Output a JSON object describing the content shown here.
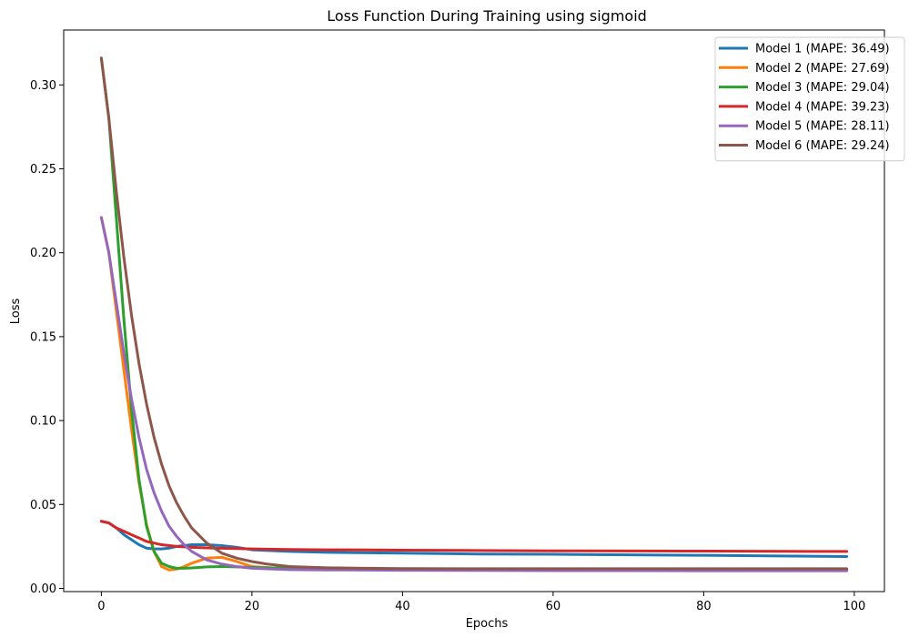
{
  "chart_data": {
    "type": "line",
    "title": "Loss Function During Training using sigmoid",
    "xlabel": "Epochs",
    "ylabel": "Loss",
    "xlim": [
      -5,
      104
    ],
    "ylim": [
      -0.0019,
      0.3327
    ],
    "xticks": [
      0,
      20,
      40,
      60,
      80,
      100
    ],
    "yticks": [
      0.0,
      0.05,
      0.1,
      0.15,
      0.2,
      0.25,
      0.3
    ],
    "xtick_labels": [
      "0",
      "20",
      "40",
      "60",
      "80",
      "100"
    ],
    "ytick_labels": [
      "0.00",
      "0.05",
      "0.10",
      "0.15",
      "0.20",
      "0.25",
      "0.30"
    ],
    "grid": false,
    "legend_position": "top-right",
    "series": [
      {
        "name": "Model 1 (MAPE: 36.49)",
        "color": "#1f77b4",
        "x": [
          0,
          1,
          2,
          3,
          4,
          5,
          6,
          7,
          8,
          9,
          10,
          12,
          14,
          16,
          18,
          20,
          25,
          30,
          40,
          50,
          60,
          70,
          80,
          90,
          99
        ],
        "y": [
          0.04,
          0.039,
          0.036,
          0.032,
          0.029,
          0.026,
          0.024,
          0.0235,
          0.0235,
          0.024,
          0.025,
          0.026,
          0.026,
          0.0255,
          0.0245,
          0.023,
          0.022,
          0.0215,
          0.021,
          0.0205,
          0.0203,
          0.02,
          0.0197,
          0.0193,
          0.019
        ]
      },
      {
        "name": "Model 2 (MAPE: 27.69)",
        "color": "#ff7f0e",
        "x": [
          0,
          1,
          2,
          3,
          4,
          5,
          6,
          7,
          8,
          9,
          10,
          11,
          12,
          14,
          16,
          18,
          20,
          25,
          30,
          40,
          50,
          60,
          70,
          80,
          90,
          99
        ],
        "y": [
          0.221,
          0.2,
          0.165,
          0.13,
          0.095,
          0.063,
          0.038,
          0.022,
          0.013,
          0.011,
          0.0115,
          0.013,
          0.015,
          0.018,
          0.0185,
          0.016,
          0.013,
          0.0115,
          0.0112,
          0.011,
          0.011,
          0.011,
          0.011,
          0.011,
          0.011,
          0.011
        ]
      },
      {
        "name": "Model 3 (MAPE: 29.04)",
        "color": "#2ca02c",
        "x": [
          0,
          1,
          2,
          3,
          4,
          5,
          6,
          7,
          8,
          9,
          10,
          11,
          12,
          14,
          16,
          18,
          20,
          25,
          30,
          40,
          50,
          60,
          70,
          80,
          90,
          99
        ],
        "y": [
          0.316,
          0.28,
          0.22,
          0.16,
          0.107,
          0.065,
          0.037,
          0.022,
          0.015,
          0.013,
          0.012,
          0.012,
          0.0122,
          0.0128,
          0.013,
          0.0128,
          0.0125,
          0.012,
          0.0117,
          0.0115,
          0.0115,
          0.0115,
          0.0115,
          0.0115,
          0.0115,
          0.0115
        ]
      },
      {
        "name": "Model 4 (MAPE: 39.23)",
        "color": "#d62728",
        "x": [
          0,
          1,
          2,
          3,
          4,
          5,
          6,
          7,
          8,
          10,
          12,
          15,
          20,
          25,
          30,
          40,
          50,
          60,
          70,
          80,
          90,
          99
        ],
        "y": [
          0.04,
          0.039,
          0.036,
          0.034,
          0.032,
          0.03,
          0.028,
          0.027,
          0.026,
          0.025,
          0.0245,
          0.024,
          0.0235,
          0.0232,
          0.023,
          0.0228,
          0.0226,
          0.0224,
          0.0223,
          0.0222,
          0.0221,
          0.022
        ]
      },
      {
        "name": "Model 5 (MAPE: 28.11)",
        "color": "#9467bd",
        "x": [
          0,
          1,
          2,
          3,
          4,
          5,
          6,
          7,
          8,
          9,
          10,
          11,
          12,
          14,
          16,
          18,
          20,
          25,
          30,
          40,
          50,
          60,
          70,
          80,
          90,
          99
        ],
        "y": [
          0.221,
          0.2,
          0.17,
          0.14,
          0.113,
          0.09,
          0.071,
          0.057,
          0.046,
          0.037,
          0.031,
          0.026,
          0.022,
          0.017,
          0.0145,
          0.013,
          0.012,
          0.0112,
          0.011,
          0.0108,
          0.0107,
          0.0106,
          0.0106,
          0.0105,
          0.0105,
          0.0105
        ]
      },
      {
        "name": "Model 6 (MAPE: 29.24)",
        "color": "#8c564b",
        "x": [
          0,
          1,
          2,
          3,
          4,
          5,
          6,
          7,
          8,
          9,
          10,
          11,
          12,
          14,
          16,
          18,
          20,
          22,
          25,
          30,
          35,
          40,
          50,
          60,
          70,
          80,
          90,
          99
        ],
        "y": [
          0.316,
          0.28,
          0.236,
          0.197,
          0.163,
          0.134,
          0.11,
          0.09,
          0.074,
          0.061,
          0.051,
          0.043,
          0.036,
          0.027,
          0.021,
          0.018,
          0.016,
          0.0145,
          0.013,
          0.0123,
          0.012,
          0.0118,
          0.0117,
          0.0117,
          0.0117,
          0.0117,
          0.0117,
          0.0117
        ]
      }
    ]
  }
}
